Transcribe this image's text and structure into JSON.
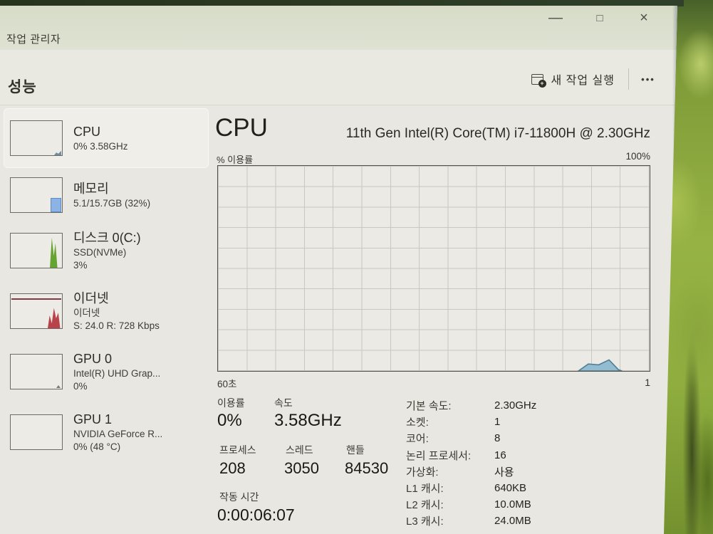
{
  "window": {
    "title": "작업 관리자",
    "controls": {
      "minimize": "—",
      "maximize": "□",
      "close": "×"
    }
  },
  "toolbar": {
    "page_title": "성능",
    "run_new_task": "새 작업 실행",
    "more": "•••"
  },
  "sidebar": {
    "items": [
      {
        "title": "CPU",
        "line1": "0% 3.58GHz",
        "line2": ""
      },
      {
        "title": "메모리",
        "line1": "5.1/15.7GB (32%)",
        "line2": ""
      },
      {
        "title": "디스크 0(C:)",
        "line1": "SSD(NVMe)",
        "line2": "3%"
      },
      {
        "title": "이더넷",
        "line1": "이더넷",
        "line2": "S: 24.0 R: 728 Kbps"
      },
      {
        "title": "GPU 0",
        "line1": "Intel(R) UHD Grap...",
        "line2": "0%"
      },
      {
        "title": "GPU 1",
        "line1": "NVIDIA GeForce R...",
        "line2": "0% (48 °C)"
      }
    ]
  },
  "main": {
    "title": "CPU",
    "subtitle": "11th Gen Intel(R) Core(TM) i7-11800H @ 2.30GHz",
    "y_top_left": "% 이용률",
    "y_top_right": "100%",
    "x_left": "60초",
    "x_right": "1",
    "stats": {
      "utilization_label": "이용률",
      "utilization": "0%",
      "speed_label": "속도",
      "speed": "3.58GHz",
      "processes_label": "프로세스",
      "processes": "208",
      "threads_label": "스레드",
      "threads": "3050",
      "handles_label": "핸들",
      "handles": "84530",
      "uptime_label": "작동 시간",
      "uptime": "0:00:06:07"
    },
    "details": [
      {
        "label": "기본 속도:",
        "value": "2.30GHz"
      },
      {
        "label": "소켓:",
        "value": "1"
      },
      {
        "label": "코어:",
        "value": "8"
      },
      {
        "label": "논리 프로세서:",
        "value": "16"
      },
      {
        "label": "가상화:",
        "value": "사용"
      },
      {
        "label": "L1 캐시:",
        "value": "640KB"
      },
      {
        "label": "L2 캐시:",
        "value": "10.0MB"
      },
      {
        "label": "L3 캐시:",
        "value": "24.0MB"
      }
    ]
  },
  "chart_data": {
    "type": "area",
    "title": "% 이용률",
    "ylim": [
      0,
      100
    ],
    "x_axis": {
      "left_label": "60초",
      "right_label": "1"
    },
    "grid": true,
    "series": [
      {
        "name": "CPU 이용률",
        "points": [
          [
            0.835,
            0
          ],
          [
            0.858,
            3.4
          ],
          [
            0.882,
            3.0
          ],
          [
            0.906,
            5.4
          ],
          [
            0.928,
            0.6
          ],
          [
            0.936,
            0
          ]
        ]
      }
    ],
    "colors": {
      "fill": "#93bcd0",
      "stroke": "#4f7e97",
      "grid": "#c9c7c1",
      "accent": "#2f6f8f"
    }
  }
}
